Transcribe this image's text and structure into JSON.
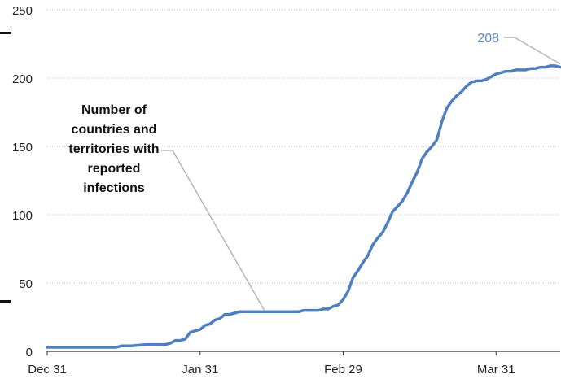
{
  "colors": {
    "line": "#4f7fbe",
    "grid": "#bdbdbd",
    "axis": "#333333",
    "leader": "#b5b5b5",
    "end_label": "#5b86c4"
  },
  "annotation": {
    "lines": [
      "Number of",
      "countries and",
      "territories with",
      "reported",
      "infections"
    ]
  },
  "chart_data": {
    "type": "line",
    "title": "",
    "xlabel": "",
    "ylabel": "",
    "x_axis": {
      "start": "2019-12-31",
      "end": "2020-04-13",
      "ticks": [
        {
          "date": "2019-12-31",
          "label": "Dec 31"
        },
        {
          "date": "2020-01-31",
          "label": "Jan 31"
        },
        {
          "date": "2020-02-29",
          "label": "Feb 29"
        },
        {
          "date": "2020-03-31",
          "label": "Mar 31"
        }
      ]
    },
    "ylim": [
      0,
      250
    ],
    "yticks": [
      0,
      50,
      100,
      150,
      200,
      250
    ],
    "grid": "horizontal dotted",
    "end_label": "208",
    "series": [
      {
        "x": [
          "2019-12-31",
          "2020-01-05",
          "2020-01-10",
          "2020-01-13",
          "2020-01-14",
          "2020-01-15",
          "2020-01-16",
          "2020-01-17",
          "2020-01-20",
          "2020-01-21",
          "2020-01-22",
          "2020-01-23",
          "2020-01-24",
          "2020-01-25",
          "2020-01-26",
          "2020-01-27",
          "2020-01-28",
          "2020-01-29",
          "2020-01-30",
          "2020-01-31",
          "2020-02-01",
          "2020-02-02",
          "2020-02-03",
          "2020-02-04",
          "2020-02-05",
          "2020-02-06",
          "2020-02-07",
          "2020-02-08",
          "2020-02-09",
          "2020-02-10",
          "2020-02-11",
          "2020-02-12",
          "2020-02-13",
          "2020-02-14",
          "2020-02-15",
          "2020-02-16",
          "2020-02-17",
          "2020-02-18",
          "2020-02-19",
          "2020-02-20",
          "2020-02-21",
          "2020-02-22",
          "2020-02-23",
          "2020-02-24",
          "2020-02-25",
          "2020-02-26",
          "2020-02-27",
          "2020-02-28",
          "2020-02-29",
          "2020-03-01",
          "2020-03-02",
          "2020-03-03",
          "2020-03-04",
          "2020-03-05",
          "2020-03-06",
          "2020-03-07",
          "2020-03-08",
          "2020-03-09",
          "2020-03-10",
          "2020-03-11",
          "2020-03-12",
          "2020-03-13",
          "2020-03-14",
          "2020-03-15",
          "2020-03-16",
          "2020-03-17",
          "2020-03-18",
          "2020-03-19",
          "2020-03-20",
          "2020-03-21",
          "2020-03-22",
          "2020-03-23",
          "2020-03-24",
          "2020-03-25",
          "2020-03-26",
          "2020-03-27",
          "2020-03-28",
          "2020-03-29",
          "2020-03-30",
          "2020-03-31",
          "2020-04-01",
          "2020-04-02",
          "2020-04-03",
          "2020-04-04",
          "2020-04-05",
          "2020-04-06",
          "2020-04-07",
          "2020-04-08",
          "2020-04-09",
          "2020-04-10",
          "2020-04-11",
          "2020-04-12",
          "2020-04-13"
        ],
        "values": [
          3,
          3,
          3,
          3,
          3,
          4,
          4,
          4,
          5,
          5,
          5,
          5,
          5,
          6,
          8,
          8,
          9,
          14,
          15,
          16,
          19,
          20,
          23,
          24,
          27,
          27,
          28,
          29,
          29,
          29,
          29,
          29,
          29,
          29,
          29,
          29,
          29,
          29,
          29,
          29,
          30,
          30,
          30,
          30,
          31,
          31,
          33,
          34,
          38,
          44,
          54,
          59,
          65,
          70,
          78,
          83,
          87,
          94,
          102,
          106,
          110,
          116,
          124,
          131,
          141,
          146,
          150,
          155,
          168,
          178,
          183,
          187,
          190,
          194,
          197,
          198,
          198,
          199,
          201,
          203,
          204,
          205,
          205,
          206,
          206,
          206,
          207,
          207,
          208,
          208,
          209,
          209,
          208
        ]
      }
    ]
  }
}
